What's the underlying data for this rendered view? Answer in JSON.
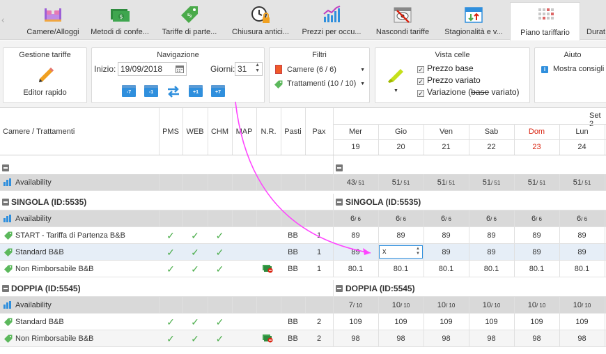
{
  "tabs": [
    {
      "label": "Camere/Alloggi",
      "icon": "bed-icon"
    },
    {
      "label": "Metodi di confe...",
      "icon": "money-icon"
    },
    {
      "label": "Tariffe di parte...",
      "icon": "price-tag-icon"
    },
    {
      "label": "Chiusura antici...",
      "icon": "clock-lock-icon"
    },
    {
      "label": "Prezzi per occu...",
      "icon": "bar-chart-icon"
    },
    {
      "label": "Nascondi tariffe",
      "icon": "calendar-hidden-icon"
    },
    {
      "label": "Stagionalità e v...",
      "icon": "calendar-arrows-icon"
    },
    {
      "label": "Piano tariffario",
      "icon": "grid-calendar-icon"
    },
    {
      "label": "Durat",
      "icon": ""
    }
  ],
  "toolbar": {
    "gestione": {
      "title": "Gestione tariffe",
      "editor_label": "Editor rapido"
    },
    "navigazione": {
      "title": "Navigazione",
      "inizio_label": "Inizio:",
      "inizio_value": "19/09/2018",
      "giorni_label": "Giorni:",
      "giorni_value": "31",
      "buttons": [
        "-7",
        "-1",
        "+1",
        "+7"
      ]
    },
    "filtri": {
      "title": "Filtri",
      "camere": "Camere (6 / 6)",
      "trattamenti": "Trattamenti (10 / 10)"
    },
    "vista": {
      "title": "Vista celle",
      "options": [
        "Prezzo base",
        "Prezzo variato",
        "Variazione ("
      ],
      "option3_strike": "base",
      "option3_end": " variato)"
    },
    "aiuto": {
      "title": "Aiuto",
      "consigli": "Mostra consigli"
    }
  },
  "grid": {
    "month_label": "Set 2",
    "left_header": "Camere / Trattamenti",
    "columns": [
      "PMS",
      "WEB",
      "CHM",
      "MAP",
      "N.R.",
      "Pasti",
      "Pax"
    ],
    "days": [
      {
        "dow": "Mer",
        "day": "19",
        "sunday": false
      },
      {
        "dow": "Gio",
        "day": "20",
        "sunday": false
      },
      {
        "dow": "Ven",
        "day": "21",
        "sunday": false
      },
      {
        "dow": "Sab",
        "day": "22",
        "sunday": false
      },
      {
        "dow": "Dom",
        "day": "23",
        "sunday": true
      },
      {
        "dow": "Lun",
        "day": "24",
        "sunday": false
      }
    ],
    "availability_label": "Availability",
    "availability_top": [
      {
        "a": "43",
        "b": "/ 51"
      },
      {
        "a": "51",
        "b": "/ 51"
      },
      {
        "a": "51",
        "b": "/ 51"
      },
      {
        "a": "51",
        "b": "/ 51"
      },
      {
        "a": "51",
        "b": "/ 51"
      },
      {
        "a": "51",
        "b": "/ 51"
      }
    ],
    "sections": [
      {
        "title": "SINGOLA (ID:5535)",
        "availability": [
          {
            "a": "6",
            "b": "/ 6"
          },
          {
            "a": "6",
            "b": "/ 6"
          },
          {
            "a": "6",
            "b": "/ 6"
          },
          {
            "a": "6",
            "b": "/ 6"
          },
          {
            "a": "6",
            "b": "/ 6"
          },
          {
            "a": "6",
            "b": "/ 6"
          }
        ],
        "rates": [
          {
            "name": "START - Tariffa di Partenza B&B",
            "nr": false,
            "pasti": "BB",
            "pax": "1",
            "values": [
              "89",
              "89",
              "89",
              "89",
              "89",
              "89"
            ]
          },
          {
            "name": "Standard B&B",
            "nr": false,
            "pasti": "BB",
            "pax": "1",
            "values": [
              "89",
              "x",
              "89",
              "89",
              "89",
              "89"
            ],
            "editing": 1
          },
          {
            "name": "Non Rimborsabile B&B",
            "nr": true,
            "pasti": "BB",
            "pax": "1",
            "values": [
              "80.1",
              "80.1",
              "80.1",
              "80.1",
              "80.1",
              "80.1"
            ]
          }
        ]
      },
      {
        "title": "DOPPIA (ID:5545)",
        "availability": [
          {
            "a": "7",
            "b": "/ 10"
          },
          {
            "a": "10",
            "b": "/ 10"
          },
          {
            "a": "10",
            "b": "/ 10"
          },
          {
            "a": "10",
            "b": "/ 10"
          },
          {
            "a": "10",
            "b": "/ 10"
          },
          {
            "a": "10",
            "b": "/ 10"
          }
        ],
        "rates": [
          {
            "name": "Standard B&B",
            "nr": false,
            "pasti": "BB",
            "pax": "2",
            "values": [
              "109",
              "109",
              "109",
              "109",
              "109",
              "109"
            ]
          },
          {
            "name": "Non Rimborsabile B&B",
            "nr": true,
            "pasti": "BB",
            "pax": "2",
            "values": [
              "98",
              "98",
              "98",
              "98",
              "98",
              "98"
            ]
          }
        ]
      }
    ]
  },
  "colors": {
    "accent": "#2f8fdd",
    "check": "#4cae4c",
    "sunday": "#d9230f",
    "arrow": "#ff44ff",
    "tag": "#5cb85c"
  }
}
